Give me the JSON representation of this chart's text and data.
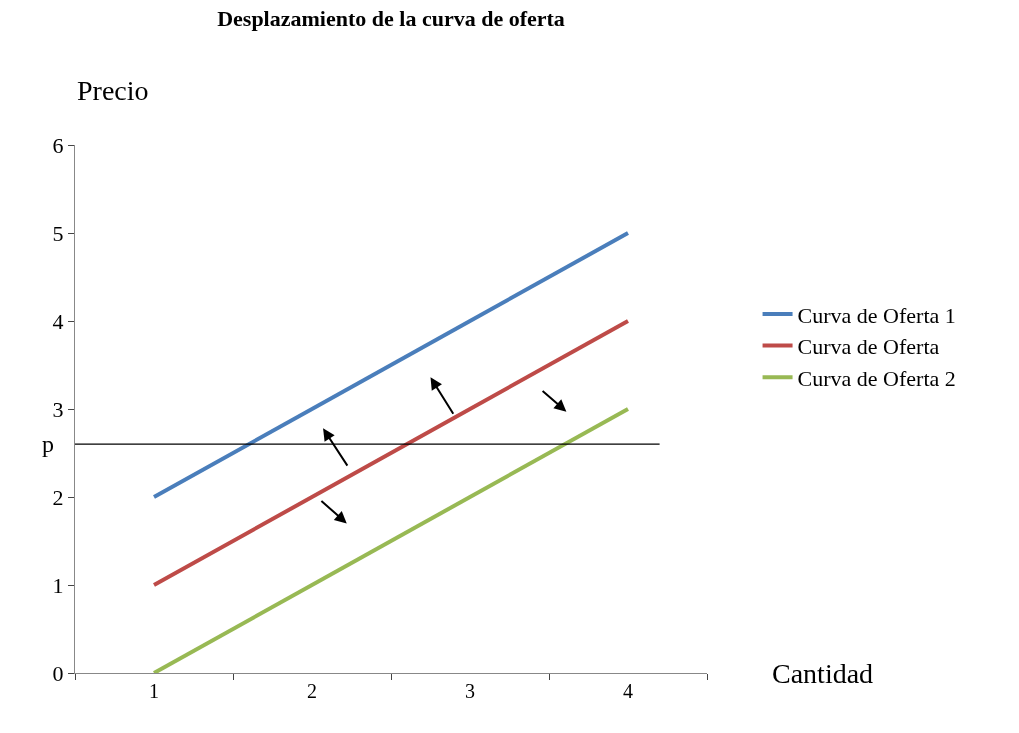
{
  "chart_data": {
    "type": "line",
    "title": "Desplazamiento de la curva de oferta",
    "xlabel": "Cantidad",
    "ylabel": "Precio",
    "categories": [
      "1",
      "2",
      "3",
      "4"
    ],
    "series": [
      {
        "name": "Curva de Oferta 1",
        "color": "#4a7ebb",
        "values": [
          2,
          3,
          4,
          5
        ]
      },
      {
        "name": "Curva de Oferta",
        "color": "#be4b48",
        "values": [
          1,
          2,
          3,
          4
        ]
      },
      {
        "name": "Curva de Oferta 2",
        "color": "#98b954",
        "values": [
          0,
          1,
          2,
          3
        ]
      }
    ],
    "ylim": [
      0,
      6
    ],
    "yticks": [
      0,
      1,
      2,
      3,
      4,
      5,
      6
    ],
    "ref_lines": [
      {
        "axis": "y",
        "value": 2.6,
        "label": "p",
        "color": "#000000"
      }
    ],
    "legend": "right",
    "marker": "none",
    "line_style": "solid"
  }
}
